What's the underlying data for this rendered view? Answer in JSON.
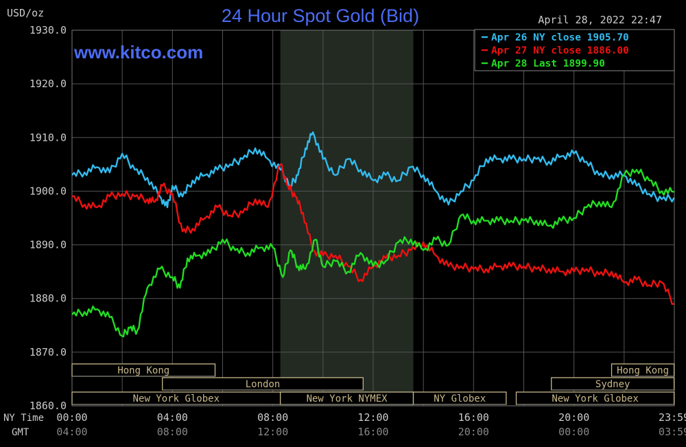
{
  "header": {
    "unit": "USD/oz",
    "title": "24 Hour Spot Gold (Bid)",
    "date": "April 28, 2022 22:47",
    "watermark": "www.kitco.com"
  },
  "colors": {
    "background": "#000000",
    "grid": "#555555",
    "session_shade": "#222a22",
    "title": "#4c6cf4",
    "apr26": "#33bbee",
    "apr27": "#ee1111",
    "apr28": "#22dd22",
    "text": "#cccccc",
    "session_box": "#c8b88a"
  },
  "legend": [
    {
      "key": "apr26",
      "text": "Apr 26 NY close 1905.70"
    },
    {
      "key": "apr27",
      "text": "Apr 27 NY close 1886.00"
    },
    {
      "key": "apr28",
      "text": "Apr 28 Last 1899.90"
    }
  ],
  "axis": {
    "x_row1_label": "NY Time",
    "x_row2_label": "GMT",
    "ny_ticks": [
      "00:00",
      "04:00",
      "08:00",
      "12:00",
      "16:00",
      "20:00",
      "23:59"
    ],
    "gmt_ticks": [
      "04:00",
      "08:00",
      "12:00",
      "16:00",
      "20:00",
      "00:00",
      "03:59"
    ]
  },
  "sessions": [
    {
      "label": "Hong Kong",
      "row": 0,
      "start": 0,
      "end": 5.7
    },
    {
      "label": "Hong Kong",
      "row": 0,
      "start": 21.5,
      "end": 23.99
    },
    {
      "label": "London",
      "row": 1,
      "start": 3.6,
      "end": 11.6
    },
    {
      "label": "Sydney",
      "row": 1,
      "start": 19.1,
      "end": 23.99
    },
    {
      "label": "New York Globex",
      "row": 2,
      "start": 0,
      "end": 8.3
    },
    {
      "label": "New York NYMEX",
      "row": 2,
      "start": 8.3,
      "end": 13.6
    },
    {
      "label": "NY Globex",
      "row": 2,
      "start": 13.6,
      "end": 17.3
    },
    {
      "label": "New York Globex",
      "row": 2,
      "start": 17.7,
      "end": 23.99
    }
  ],
  "chart_data": {
    "type": "line",
    "title": "24 Hour Spot Gold (Bid)",
    "ylabel": "USD/oz",
    "ylim": [
      1860,
      1930
    ],
    "xlim": [
      0,
      24
    ],
    "y_ticks": [
      "1860.0",
      "1870.0",
      "1880.0",
      "1890.0",
      "1900.0",
      "1910.0",
      "1920.0",
      "1930.0"
    ],
    "x_unit": "hours NY time",
    "shaded_region": [
      8.3,
      13.6
    ],
    "grid": true,
    "legend_position": "top-right",
    "series": [
      {
        "name": "Apr 26 NY close 1905.70",
        "color_key": "apr26",
        "x": [
          0,
          0.5,
          1,
          1.5,
          2,
          2.5,
          3,
          3.5,
          3.8,
          4,
          4.4,
          4.8,
          5.3,
          5.8,
          6.3,
          6.8,
          7.3,
          7.8,
          8.3,
          8.7,
          9,
          9.3,
          9.6,
          10,
          10.5,
          11,
          11.5,
          12,
          12.5,
          13,
          13.5,
          14,
          14.5,
          15,
          15.5,
          16,
          16.5,
          17,
          17.5,
          18,
          18.5,
          19,
          19.5,
          20,
          20.5,
          21,
          21.5,
          22,
          22.5,
          23,
          23.5,
          23.99
        ],
        "y": [
          1903,
          1903.5,
          1904.5,
          1903.5,
          1907,
          1904,
          1902.5,
          1899,
          1897,
          1901,
          1899,
          1902,
          1903,
          1904,
          1905,
          1906,
          1908,
          1906,
          1904,
          1901,
          1903,
          1908,
          1911,
          1906,
          1903,
          1906,
          1904,
          1902,
          1903,
          1902,
          1904.5,
          1903,
          1900,
          1897.5,
          1900,
          1902,
          1906,
          1906,
          1906,
          1906,
          1906,
          1905.5,
          1906.5,
          1907,
          1905.5,
          1903,
          1903,
          1903,
          1901,
          1899.5,
          1898.5,
          1898.8
        ]
      },
      {
        "name": "Apr 27 NY close 1886.00",
        "color_key": "apr27",
        "x": [
          0,
          0.5,
          1,
          1.5,
          2,
          2.5,
          3,
          3.3,
          3.6,
          4,
          4.4,
          4.8,
          5.3,
          5.8,
          6.3,
          6.8,
          7.3,
          7.8,
          8.3,
          8.6,
          8.9,
          9.2,
          9.6,
          10,
          10.5,
          11,
          11.5,
          12,
          12.5,
          13,
          13.5,
          14,
          14.5,
          15,
          15.5,
          16,
          16.5,
          17,
          17.5,
          18,
          18.5,
          19,
          19.5,
          20,
          20.5,
          21,
          21.5,
          22,
          22.5,
          23,
          23.5,
          23.99
        ],
        "y": [
          1899,
          1897.5,
          1897,
          1899,
          1899.5,
          1899,
          1898.5,
          1898,
          1901,
          1899.5,
          1892.5,
          1893,
          1895,
          1897,
          1895.5,
          1896,
          1898.5,
          1897,
          1905,
          1901,
          1899,
          1896,
          1889,
          1888,
          1888,
          1886,
          1883.5,
          1886,
          1887.5,
          1888,
          1889,
          1890.5,
          1888,
          1886,
          1886,
          1885.5,
          1885.5,
          1886,
          1886,
          1886,
          1885.5,
          1885.5,
          1885,
          1885,
          1885.5,
          1884.5,
          1885,
          1883,
          1883.5,
          1882.5,
          1883,
          1879
        ]
      },
      {
        "name": "Apr 28 Last 1899.90",
        "color_key": "apr28",
        "x": [
          0,
          0.5,
          1,
          1.5,
          2,
          2.3,
          2.6,
          3,
          3.5,
          4,
          4.3,
          4.6,
          5,
          5.5,
          6,
          6.5,
          7,
          7.5,
          8,
          8.4,
          8.7,
          9,
          9.3,
          9.7,
          10,
          10.5,
          11,
          11.5,
          12,
          12.5,
          13,
          13.5,
          14,
          14.5,
          15,
          15.5,
          16,
          16.5,
          17,
          17.5,
          18,
          18.5,
          19,
          19.5,
          20,
          20.5,
          21,
          21.5,
          22,
          22.5,
          23,
          23.5,
          23.99
        ],
        "y": [
          1877,
          1877.5,
          1878,
          1876.5,
          1873,
          1874.5,
          1874,
          1882,
          1885.5,
          1884,
          1882,
          1887.5,
          1888,
          1888.5,
          1891,
          1889,
          1888.5,
          1889.5,
          1889.5,
          1884,
          1889,
          1886,
          1885.5,
          1891,
          1886,
          1887,
          1885,
          1888.5,
          1886,
          1887,
          1890.5,
          1891,
          1889,
          1891,
          1890,
          1895.5,
          1894.5,
          1894.5,
          1894.5,
          1894.5,
          1894.5,
          1894.5,
          1893.5,
          1894.5,
          1895,
          1897,
          1898,
          1897,
          1903,
          1904,
          1902,
          1900,
          1899.9
        ]
      }
    ]
  }
}
